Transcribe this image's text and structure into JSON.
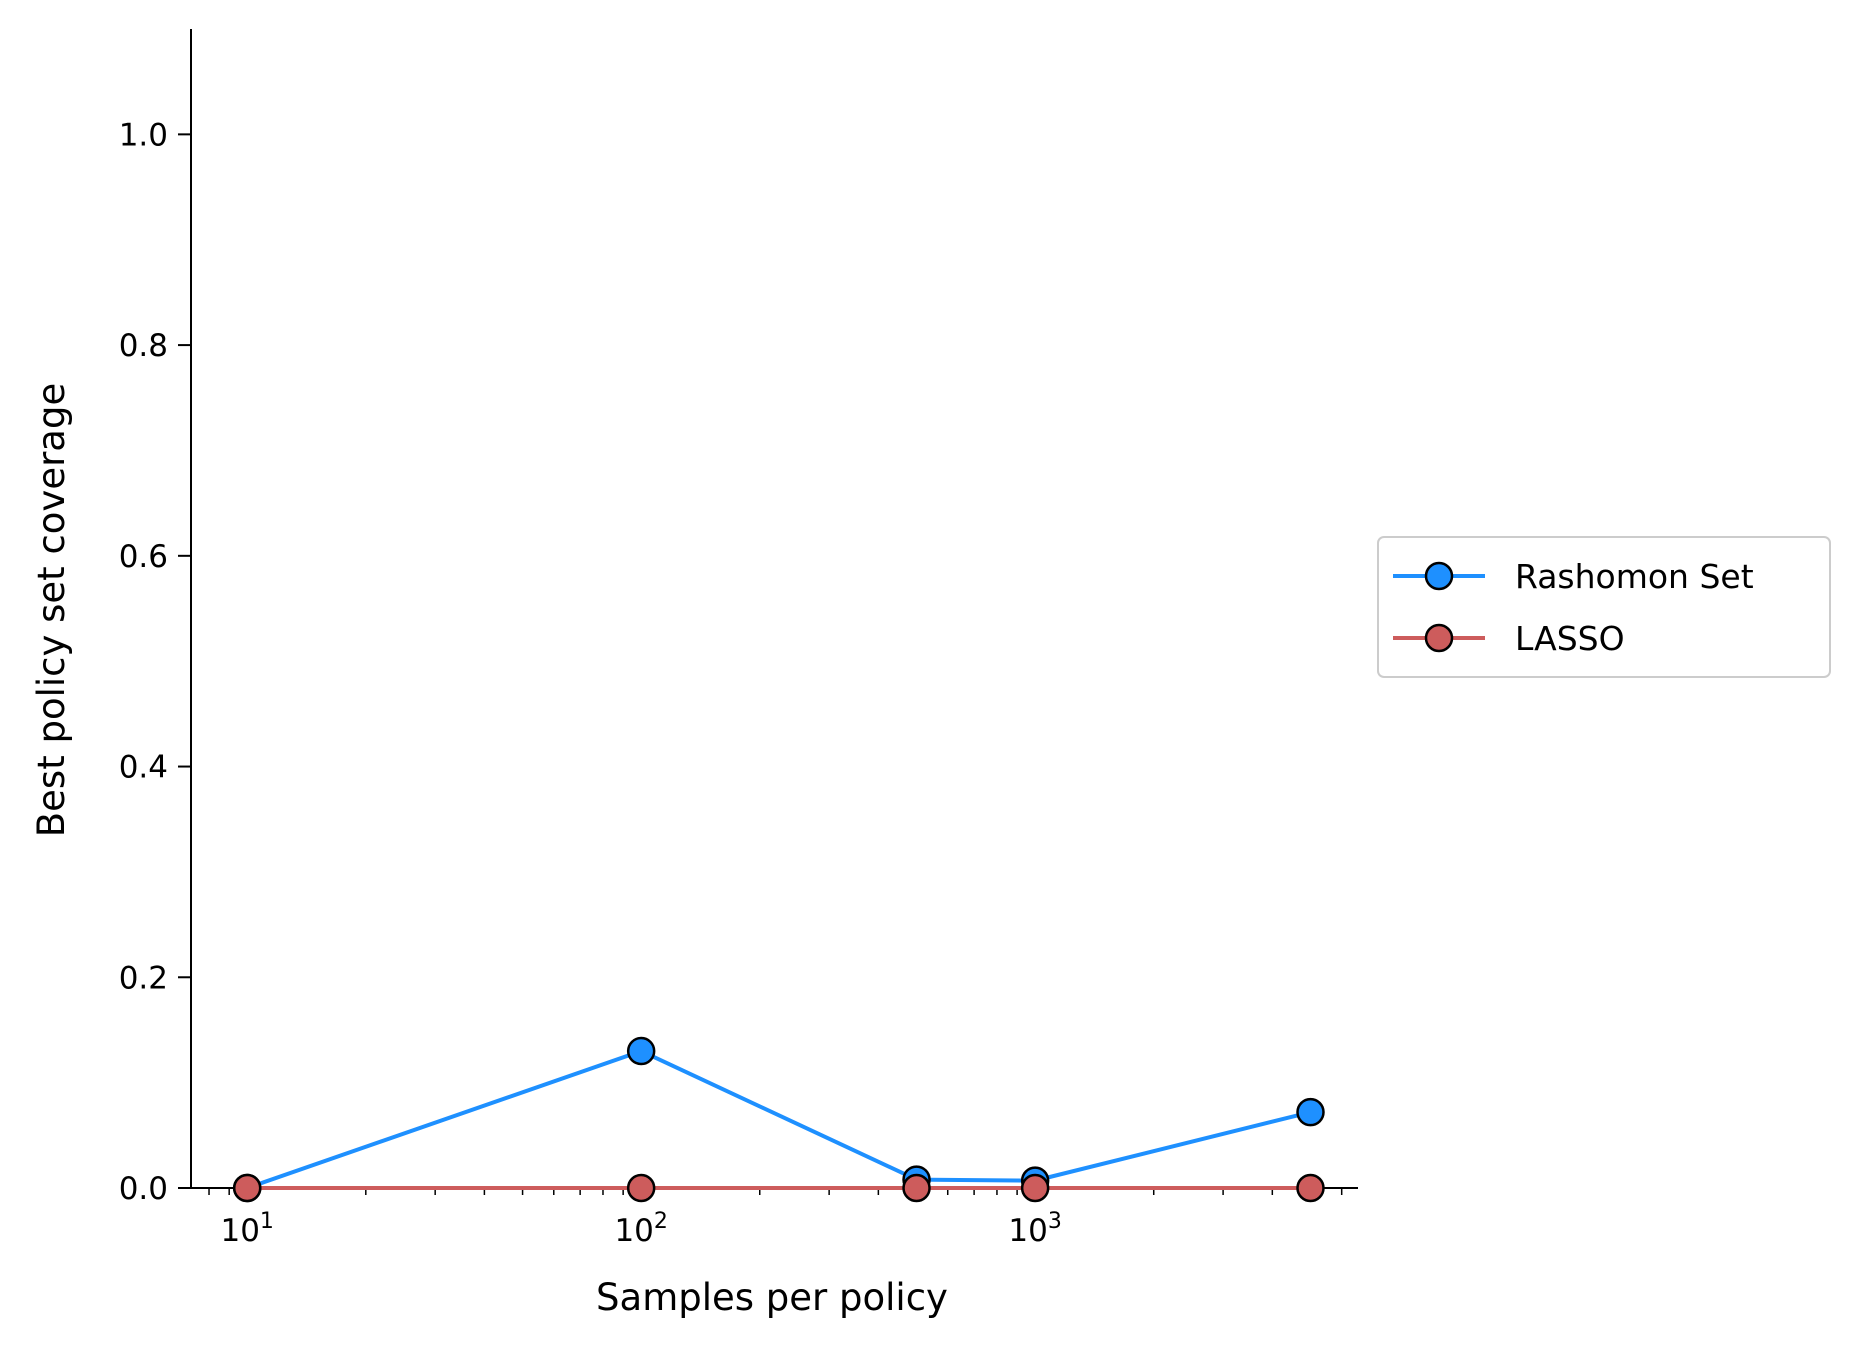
{
  "chart_data": {
    "type": "line",
    "xscale": "log",
    "xlim": [
      7.2,
      6600
    ],
    "ylim": [
      0.0,
      1.1
    ],
    "xlabel": "Samples per policy",
    "ylabel": "Best policy set coverage",
    "x_ticks": [
      {
        "value": 10,
        "base": "10",
        "exp": "1"
      },
      {
        "value": 100,
        "base": "10",
        "exp": "2"
      },
      {
        "value": 1000,
        "base": "10",
        "exp": "3"
      }
    ],
    "y_ticks": [
      {
        "value": 0.0,
        "label": "0.0"
      },
      {
        "value": 0.2,
        "label": "0.2"
      },
      {
        "value": 0.4,
        "label": "0.4"
      },
      {
        "value": 0.6,
        "label": "0.6"
      },
      {
        "value": 0.8,
        "label": "0.8"
      },
      {
        "value": 1.0,
        "label": "1.0"
      }
    ],
    "x": [
      10,
      100,
      500,
      1000,
      5000
    ],
    "series": [
      {
        "name": "Rashomon Set",
        "values": [
          0.0,
          0.13,
          0.008,
          0.007,
          0.072
        ],
        "color": "#1e90ff"
      },
      {
        "name": "LASSO",
        "values": [
          0.0,
          0.0,
          0.0,
          0.0,
          0.0
        ],
        "color": "#cd5c5c"
      }
    ],
    "grid": false,
    "legend_position": "right, outside plot"
  }
}
